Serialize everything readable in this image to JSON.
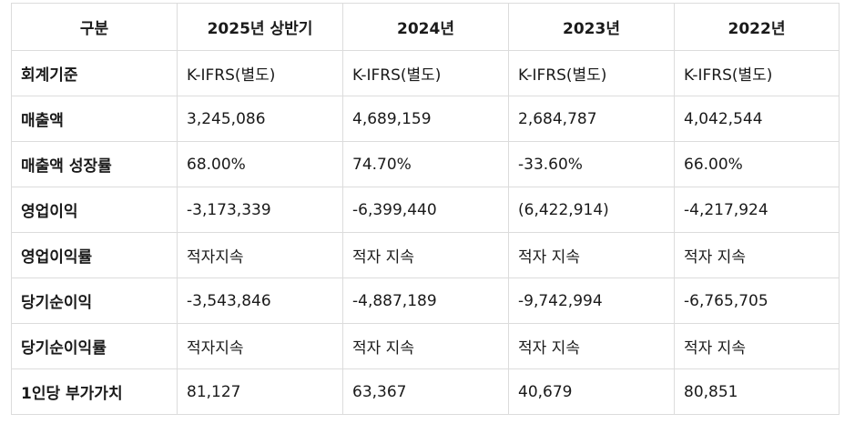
{
  "table": {
    "headers": [
      "구분",
      "2025년 상반기",
      "2024년",
      "2023년",
      "2022년"
    ],
    "rows": [
      {
        "label": "회계기준",
        "cells": [
          "K-IFRS(별도)",
          "K-IFRS(별도)",
          "K-IFRS(별도)",
          "K-IFRS(별도)"
        ]
      },
      {
        "label": "매출액",
        "cells": [
          "3,245,086",
          "4,689,159",
          "2,684,787",
          "4,042,544"
        ]
      },
      {
        "label": "매출액 성장률",
        "cells": [
          "68.00%",
          "74.70%",
          "-33.60%",
          "66.00%"
        ]
      },
      {
        "label": "영업이익",
        "cells": [
          "-3,173,339",
          "-6,399,440",
          "(6,422,914)",
          "-4,217,924"
        ]
      },
      {
        "label": "영업이익률",
        "cells": [
          "적자지속",
          "적자 지속",
          "적자 지속",
          "적자 지속"
        ]
      },
      {
        "label": "당기순이익",
        "cells": [
          "-3,543,846",
          "-4,887,189",
          "-9,742,994",
          "-6,765,705"
        ]
      },
      {
        "label": "당기순이익률",
        "cells": [
          "적자지속",
          "적자 지속",
          "적자 지속",
          "적자 지속"
        ]
      },
      {
        "label": "1인당 부가가치",
        "cells": [
          "81,127",
          "63,367",
          "40,679",
          "80,851"
        ]
      }
    ]
  }
}
